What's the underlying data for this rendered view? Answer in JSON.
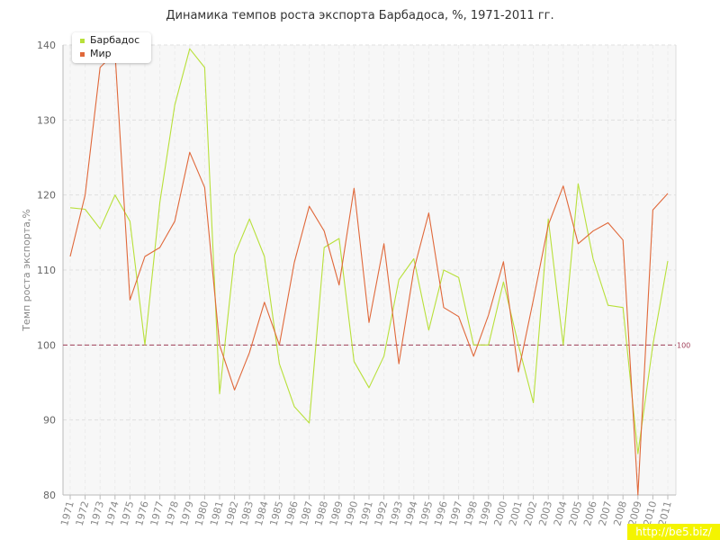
{
  "chart_data": {
    "type": "line",
    "title": "Динамика темпов роста экспорта Барбадоса, %, 1971-2011 гг.",
    "ylabel": "Темп роста экспорта,%",
    "xlabel": "",
    "ylim": [
      80,
      140
    ],
    "yticks": [
      80,
      90,
      100,
      110,
      120,
      130,
      140
    ],
    "x": [
      "1971",
      "1972",
      "1973",
      "1974",
      "1975",
      "1976",
      "1977",
      "1978",
      "1979",
      "1980",
      "1981",
      "1982",
      "1983",
      "1984",
      "1985",
      "1986",
      "1987",
      "1988",
      "1989",
      "1990",
      "1991",
      "1992",
      "1993",
      "1994",
      "1995",
      "1996",
      "1997",
      "1998",
      "1999",
      "2000",
      "2001",
      "2002",
      "2003",
      "2004",
      "2005",
      "2006",
      "2007",
      "2008",
      "2009",
      "2010",
      "2011"
    ],
    "series": [
      {
        "name": "Барбадос",
        "color": "#b8e03a",
        "values": [
          118.3,
          118.1,
          115.5,
          120,
          116.5,
          100,
          119,
          132,
          139.5,
          137,
          93.5,
          112,
          116.8,
          111.8,
          97.5,
          91.8,
          89.6,
          113,
          114.2,
          97.8,
          94.3,
          98.5,
          108.7,
          111.5,
          102,
          110,
          109,
          100,
          100,
          108.4,
          100,
          92.3,
          116.8,
          100,
          121.5,
          111.5,
          105.3,
          105,
          85.5,
          100,
          111.2
        ]
      },
      {
        "name": "Мир",
        "color": "#e0683a",
        "values": [
          111.8,
          120,
          137,
          139,
          106,
          111.8,
          113,
          116.5,
          125.7,
          121,
          100,
          94,
          99,
          105.7,
          100,
          111,
          118.5,
          115.2,
          108,
          120.9,
          103,
          113.5,
          97.5,
          110,
          117.6,
          105,
          103.8,
          98.5,
          104,
          111.1,
          96.4,
          106,
          116,
          121.2,
          113.5,
          115.2,
          116.3,
          114,
          80,
          118,
          120.2
        ]
      }
    ],
    "reference_line": {
      "value": 100,
      "label": "100",
      "color": "#a0405a"
    },
    "grid": true,
    "legend": "top-left"
  },
  "watermark": "http://be5.biz/"
}
